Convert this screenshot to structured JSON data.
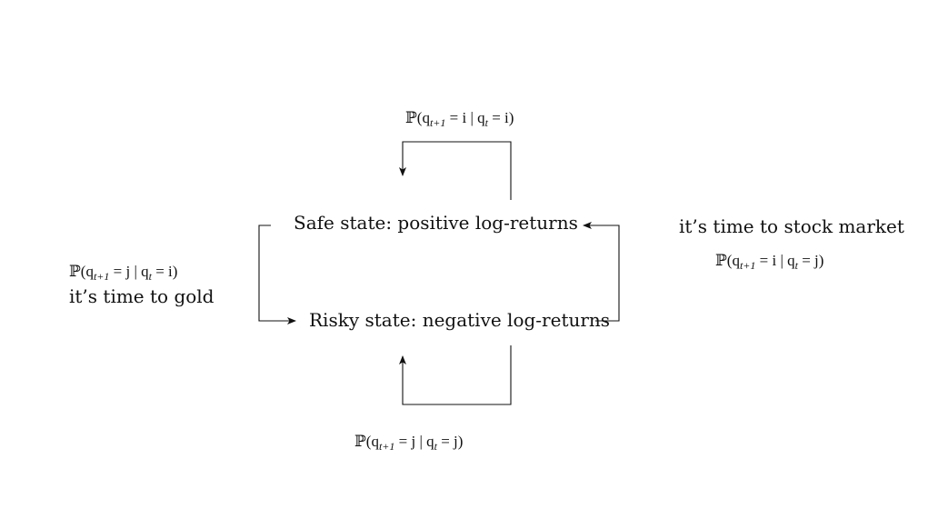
{
  "states": {
    "safe": "Safe state: positive log-returns",
    "risky": "Risky state: negative log-returns"
  },
  "transitions": {
    "stay_safe": {
      "lhs": "ℙ(q",
      "sub1": "t+1",
      "mid": " = i | q",
      "sub2": "t",
      "rhs": " = i)"
    },
    "stay_risky": {
      "lhs": "ℙ(q",
      "sub1": "t+1",
      "mid": " = j | q",
      "sub2": "t",
      "rhs": " = j)"
    },
    "safe_to_risky": {
      "lhs": "ℙ(q",
      "sub1": "t+1",
      "mid": " = j | q",
      "sub2": "t",
      "rhs": " = i)"
    },
    "risky_to_safe": {
      "lhs": "ℙ(q",
      "sub1": "t+1",
      "mid": " = i | q",
      "sub2": "t",
      "rhs": " = j)"
    }
  },
  "annotations": {
    "to_gold": "it’s time to gold",
    "to_stock": "it’s time to stock market"
  }
}
